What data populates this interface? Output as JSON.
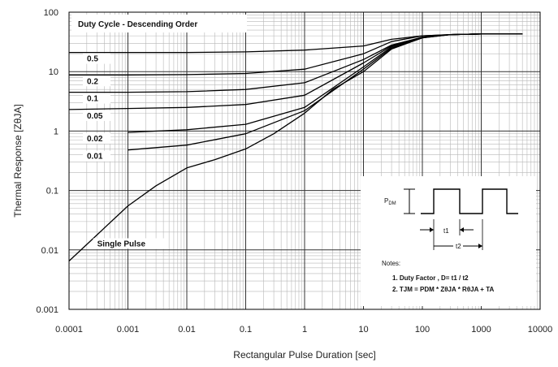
{
  "chart_data": {
    "type": "line",
    "title": "",
    "xlabel": "Rectangular Pulse Duration [sec]",
    "ylabel": "Thermal Response  [ZθJA]",
    "xscale": "log",
    "yscale": "log",
    "xlim": [
      0.0001,
      10000
    ],
    "ylim": [
      0.001,
      100
    ],
    "grid": true,
    "x_ticks": [
      "0.0001",
      "0.001",
      "0.01",
      "0.1",
      "1",
      "10",
      "100",
      "1000",
      "10000"
    ],
    "y_ticks": [
      "0.001",
      "0.01",
      "0.1",
      "1",
      "10",
      "100"
    ],
    "legend_title": "Duty Cycle - Descending Order",
    "series": [
      {
        "name": "0.5",
        "points": [
          [
            0.0001,
            21
          ],
          [
            0.001,
            21
          ],
          [
            0.01,
            21
          ],
          [
            0.1,
            21.5
          ],
          [
            1,
            23
          ],
          [
            10,
            27
          ],
          [
            30,
            35
          ],
          [
            100,
            40
          ],
          [
            300,
            42
          ],
          [
            1000,
            43
          ],
          [
            5000,
            43
          ]
        ]
      },
      {
        "name": "0.2",
        "points": [
          [
            0.0001,
            8.8
          ],
          [
            0.001,
            8.8
          ],
          [
            0.01,
            8.9
          ],
          [
            0.1,
            9.3
          ],
          [
            1,
            11
          ],
          [
            10,
            20
          ],
          [
            30,
            32
          ],
          [
            100,
            40
          ],
          [
            300,
            42
          ],
          [
            1000,
            43
          ],
          [
            5000,
            43
          ]
        ]
      },
      {
        "name": "0.1",
        "points": [
          [
            0.0001,
            4.5
          ],
          [
            0.001,
            4.5
          ],
          [
            0.01,
            4.6
          ],
          [
            0.1,
            5.0
          ],
          [
            1,
            6.5
          ],
          [
            10,
            16
          ],
          [
            30,
            28
          ],
          [
            100,
            38
          ],
          [
            300,
            42
          ],
          [
            1000,
            43
          ],
          [
            5000,
            43
          ]
        ]
      },
      {
        "name": "0.05",
        "points": [
          [
            0.0001,
            2.3
          ],
          [
            0.001,
            2.4
          ],
          [
            0.01,
            2.5
          ],
          [
            0.1,
            2.8
          ],
          [
            1,
            4.0
          ],
          [
            10,
            14
          ],
          [
            30,
            27
          ],
          [
            100,
            38
          ],
          [
            300,
            42
          ],
          [
            1000,
            43
          ],
          [
            5000,
            43
          ]
        ]
      },
      {
        "name": "0.02",
        "points": [
          [
            0.001,
            0.95
          ],
          [
            0.01,
            1.05
          ],
          [
            0.1,
            1.3
          ],
          [
            1,
            2.5
          ],
          [
            10,
            12
          ],
          [
            30,
            26
          ],
          [
            100,
            38
          ],
          [
            300,
            42
          ],
          [
            1000,
            43
          ],
          [
            5000,
            43
          ]
        ]
      },
      {
        "name": "0.01",
        "points": [
          [
            0.001,
            0.48
          ],
          [
            0.01,
            0.58
          ],
          [
            0.1,
            0.9
          ],
          [
            1,
            2.2
          ],
          [
            10,
            11
          ],
          [
            30,
            25
          ],
          [
            100,
            37
          ],
          [
            300,
            42
          ],
          [
            1000,
            43
          ],
          [
            5000,
            43
          ]
        ]
      },
      {
        "name": "Single Pulse",
        "points": [
          [
            0.0001,
            0.0065
          ],
          [
            0.0003,
            0.018
          ],
          [
            0.001,
            0.055
          ],
          [
            0.003,
            0.12
          ],
          [
            0.01,
            0.24
          ],
          [
            0.03,
            0.33
          ],
          [
            0.1,
            0.5
          ],
          [
            0.3,
            0.9
          ],
          [
            1,
            2.0
          ],
          [
            3,
            5
          ],
          [
            10,
            10
          ],
          [
            30,
            24
          ],
          [
            100,
            37
          ],
          [
            300,
            42
          ],
          [
            1000,
            43
          ],
          [
            5000,
            43
          ]
        ]
      }
    ],
    "annotation": {
      "symbols": {
        "pdm": "P",
        "pdm_sub": "DM",
        "t1": "t1",
        "t2": "t2"
      },
      "notes_heading": "Notes:",
      "note1": "1. Duty Factor ,   D= t1 / t2",
      "note2": "2. TJM = PDM * ZθJA * RθJA + TA"
    }
  }
}
